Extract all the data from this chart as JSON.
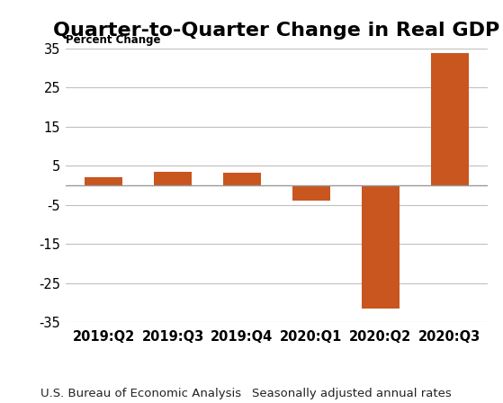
{
  "title": "Quarter-to-Quarter Change in Real GDP",
  "ylabel": "Percent Change",
  "categories": [
    "2019:Q2",
    "2019:Q3",
    "2019:Q4",
    "2020:Q1",
    "2020:Q2",
    "2020:Q3"
  ],
  "values": [
    2.0,
    3.5,
    3.2,
    -4.0,
    -31.4,
    33.8
  ],
  "bar_color": "#C8561E",
  "ylim": [
    -35,
    35
  ],
  "yticks": [
    -35,
    -25,
    -15,
    -5,
    5,
    15,
    25,
    35
  ],
  "ytick_labels": [
    "-35",
    "-25",
    "-15",
    "-5",
    "5",
    "15",
    "25",
    "35"
  ],
  "footer_left": "U.S. Bureau of Economic Analysis",
  "footer_right": "Seasonally adjusted annual rates",
  "background_color": "#ffffff",
  "title_fontsize": 16,
  "ylabel_fontsize": 8.5,
  "xtick_fontsize": 10.5,
  "ytick_fontsize": 10.5,
  "footer_fontsize": 9.5
}
